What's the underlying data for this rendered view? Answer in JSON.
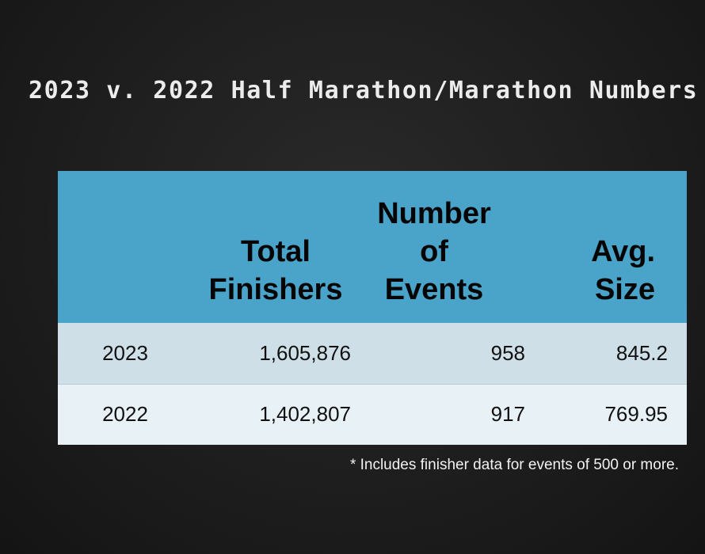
{
  "title": "2023 v. 2022 Half Marathon/Marathon Numbers",
  "table": {
    "headers": {
      "year": "",
      "total_line1": "Total",
      "total_line2": "Finishers",
      "events_line1": "Number",
      "events_line2": "of",
      "events_line3": "Events",
      "avg_line1": "Avg.",
      "avg_line2": "Size"
    },
    "rows": [
      {
        "year": "2023",
        "total_finishers": "1,605,876",
        "number_of_events": "958",
        "avg_size": "845.2"
      },
      {
        "year": "2022",
        "total_finishers": "1,402,807",
        "number_of_events": "917",
        "avg_size": "769.95"
      }
    ]
  },
  "footnote": "* Includes finisher data for events of 500 or more.",
  "colors": {
    "background": "#1e1e1e",
    "header_bg": "#4aa3c8",
    "row_2023_bg": "#cfdfe7",
    "row_2022_bg": "#e8f1f5",
    "title_text": "#ececec"
  }
}
